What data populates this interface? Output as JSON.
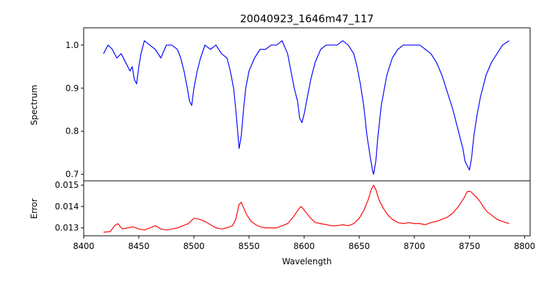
{
  "chart_data": {
    "type": "line",
    "title": "20040923_1646m47_117",
    "xlabel": "Wavelength",
    "xlim": [
      8400,
      8805
    ],
    "xticks": [
      8400,
      8450,
      8500,
      8550,
      8600,
      8650,
      8700,
      8750,
      8800
    ],
    "grid": false,
    "panels": [
      {
        "name": "spectrum",
        "ylabel": "Spectrum",
        "ylim": [
          0.685,
          1.04
        ],
        "yticks": [
          0.7,
          0.8,
          0.9,
          1.0
        ],
        "ytick_labels": [
          "0.7",
          "0.8",
          "0.9",
          "1.0"
        ],
        "series": [
          {
            "color": "#0000ff",
            "x": [
              8418,
              8422,
              8426,
              8430,
              8434,
              8438,
              8442,
              8444,
              8446,
              8448,
              8450,
              8452,
              8455,
              8460,
              8465,
              8470,
              8475,
              8480,
              8485,
              8488,
              8491,
              8494,
              8496,
              8498,
              8500,
              8503,
              8506,
              8510,
              8515,
              8520,
              8525,
              8530,
              8533,
              8536,
              8538,
              8540,
              8541,
              8543,
              8545,
              8547,
              8550,
              8555,
              8560,
              8565,
              8570,
              8575,
              8580,
              8585,
              8588,
              8591,
              8594,
              8596,
              8598,
              8600,
              8603,
              8606,
              8610,
              8615,
              8620,
              8625,
              8630,
              8635,
              8640,
              8645,
              8648,
              8651,
              8654,
              8657,
              8660,
              8662,
              8663,
              8665,
              8667,
              8670,
              8675,
              8680,
              8685,
              8690,
              8695,
              8700,
              8705,
              8710,
              8715,
              8720,
              8725,
              8730,
              8735,
              8738,
              8741,
              8744,
              8746,
              8748,
              8750,
              8752,
              8754,
              8757,
              8760,
              8765,
              8770,
              8775,
              8780,
              8786
            ],
            "y": [
              0.98,
              1.0,
              0.99,
              0.97,
              0.98,
              0.96,
              0.94,
              0.95,
              0.92,
              0.91,
              0.95,
              0.98,
              1.01,
              1.0,
              0.99,
              0.97,
              1.0,
              1.0,
              0.99,
              0.97,
              0.94,
              0.9,
              0.87,
              0.86,
              0.9,
              0.94,
              0.97,
              1.0,
              0.99,
              1.0,
              0.98,
              0.97,
              0.94,
              0.9,
              0.85,
              0.79,
              0.76,
              0.79,
              0.85,
              0.9,
              0.94,
              0.97,
              0.99,
              0.99,
              1.0,
              1.0,
              1.01,
              0.98,
              0.94,
              0.9,
              0.87,
              0.83,
              0.82,
              0.84,
              0.88,
              0.92,
              0.96,
              0.99,
              1.0,
              1.0,
              1.0,
              1.01,
              1.0,
              0.98,
              0.95,
              0.91,
              0.86,
              0.79,
              0.74,
              0.71,
              0.7,
              0.73,
              0.79,
              0.86,
              0.93,
              0.97,
              0.99,
              1.0,
              1.0,
              1.0,
              1.0,
              0.99,
              0.98,
              0.96,
              0.93,
              0.89,
              0.85,
              0.82,
              0.79,
              0.76,
              0.73,
              0.72,
              0.71,
              0.74,
              0.79,
              0.84,
              0.88,
              0.93,
              0.96,
              0.98,
              1.0,
              1.01
            ]
          }
        ]
      },
      {
        "name": "error",
        "ylabel": "Error",
        "ylim": [
          0.01263,
          0.0152
        ],
        "yticks": [
          0.013,
          0.014,
          0.015
        ],
        "ytick_labels": [
          "0.013",
          "0.014",
          "0.015"
        ],
        "series": [
          {
            "color": "#ff0000",
            "x": [
              8418,
              8424,
              8428,
              8431,
              8435,
              8440,
              8445,
              8450,
              8455,
              8460,
              8465,
              8470,
              8475,
              8480,
              8485,
              8490,
              8495,
              8500,
              8505,
              8510,
              8515,
              8520,
              8525,
              8530,
              8535,
              8538,
              8541,
              8543,
              8545,
              8548,
              8552,
              8556,
              8560,
              8565,
              8570,
              8575,
              8580,
              8585,
              8590,
              8594,
              8597,
              8599,
              8602,
              8606,
              8610,
              8615,
              8620,
              8625,
              8630,
              8635,
              8640,
              8645,
              8650,
              8654,
              8658,
              8661,
              8663,
              8665,
              8668,
              8672,
              8676,
              8680,
              8685,
              8690,
              8695,
              8700,
              8705,
              8710,
              8715,
              8720,
              8725,
              8730,
              8735,
              8740,
              8745,
              8748,
              8751,
              8754,
              8757,
              8760,
              8763,
              8766,
              8770,
              8775,
              8780,
              8786
            ],
            "y": [
              0.0128,
              0.01282,
              0.0131,
              0.0132,
              0.01295,
              0.013,
              0.01305,
              0.01295,
              0.0129,
              0.013,
              0.0131,
              0.01295,
              0.0129,
              0.01295,
              0.013,
              0.0131,
              0.0132,
              0.01345,
              0.0134,
              0.0133,
              0.01315,
              0.013,
              0.01295,
              0.013,
              0.0131,
              0.0134,
              0.0141,
              0.0142,
              0.01395,
              0.0136,
              0.0133,
              0.01315,
              0.01305,
              0.013,
              0.013,
              0.013,
              0.0131,
              0.0132,
              0.0135,
              0.0138,
              0.014,
              0.0139,
              0.0137,
              0.01345,
              0.01325,
              0.0132,
              0.01315,
              0.0131,
              0.0131,
              0.01315,
              0.0131,
              0.0132,
              0.01345,
              0.0138,
              0.0143,
              0.0148,
              0.015,
              0.0148,
              0.0143,
              0.0139,
              0.0136,
              0.0134,
              0.01325,
              0.0132,
              0.01325,
              0.0132,
              0.0132,
              0.01315,
              0.01325,
              0.0133,
              0.0134,
              0.0135,
              0.0137,
              0.014,
              0.0144,
              0.0147,
              0.0147,
              0.01455,
              0.0144,
              0.0142,
              0.01395,
              0.01375,
              0.0136,
              0.0134,
              0.0133,
              0.0132
            ]
          }
        ]
      }
    ]
  }
}
